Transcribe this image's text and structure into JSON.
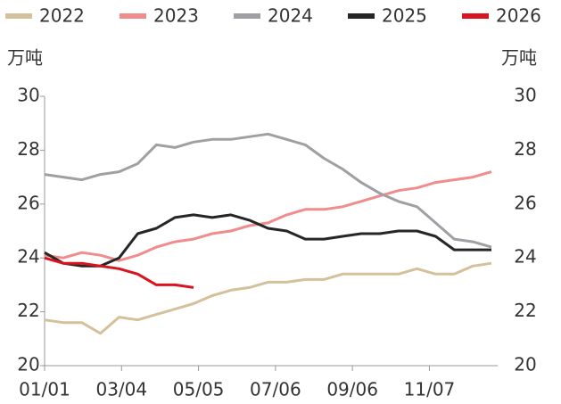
{
  "chart_data": {
    "type": "line",
    "y_label": "万吨",
    "y2_label": "万吨",
    "x": [
      0,
      15,
      30,
      45,
      60,
      75,
      90,
      105,
      120,
      135,
      150,
      165,
      180,
      195,
      210,
      225,
      240,
      255,
      270,
      285,
      300,
      315,
      330,
      345,
      360
    ],
    "xlim": [
      0,
      365
    ],
    "xticks": [
      {
        "value": 0,
        "label": "01/01"
      },
      {
        "value": 62,
        "label": "03/04"
      },
      {
        "value": 124,
        "label": "05/05"
      },
      {
        "value": 186,
        "label": "07/06"
      },
      {
        "value": 248,
        "label": "09/06"
      },
      {
        "value": 310,
        "label": "11/07"
      }
    ],
    "ylim": [
      20,
      30
    ],
    "yticks": [
      20,
      22,
      24,
      26,
      28,
      30
    ],
    "y2lim": [
      20,
      30
    ],
    "y2ticks": [
      20,
      22,
      24,
      26,
      28,
      30
    ],
    "series": [
      {
        "name": "2022",
        "color": "#d4c09a",
        "values": [
          21.7,
          21.6,
          21.6,
          21.2,
          21.8,
          21.7,
          21.9,
          22.1,
          22.3,
          22.6,
          22.8,
          22.9,
          23.1,
          23.1,
          23.2,
          23.2,
          23.4,
          23.4,
          23.4,
          23.4,
          23.6,
          23.4,
          23.4,
          23.7,
          23.8
        ]
      },
      {
        "name": "2023",
        "color": "#f08c8c",
        "values": [
          24.1,
          24.0,
          24.2,
          24.1,
          23.9,
          24.1,
          24.4,
          24.6,
          24.7,
          24.9,
          25.0,
          25.2,
          25.3,
          25.6,
          25.8,
          25.8,
          25.9,
          26.1,
          26.3,
          26.5,
          26.6,
          26.8,
          26.9,
          27.0,
          27.2
        ]
      },
      {
        "name": "2024",
        "color": "#a0a0a4",
        "values": [
          27.1,
          27.0,
          26.9,
          27.1,
          27.2,
          27.5,
          28.2,
          28.1,
          28.3,
          28.4,
          28.4,
          28.5,
          28.6,
          28.4,
          28.2,
          27.7,
          27.3,
          26.8,
          26.4,
          26.1,
          25.9,
          25.3,
          24.7,
          24.6,
          24.4
        ]
      },
      {
        "name": "2025",
        "color": "#262626",
        "values": [
          24.2,
          23.8,
          23.7,
          23.7,
          24.0,
          24.9,
          25.1,
          25.5,
          25.6,
          25.5,
          25.6,
          25.4,
          25.1,
          25.0,
          24.7,
          24.7,
          24.8,
          24.9,
          24.9,
          25.0,
          25.0,
          24.8,
          24.3,
          24.3,
          24.3
        ]
      },
      {
        "name": "2026",
        "color": "#d9141e",
        "values": [
          24.0,
          23.8,
          23.8,
          23.7,
          23.6,
          23.4,
          23.0,
          23.0,
          22.9,
          null,
          null,
          null,
          null,
          null,
          null,
          null,
          null,
          null,
          null,
          null,
          null,
          null,
          null,
          null,
          null
        ]
      }
    ]
  }
}
